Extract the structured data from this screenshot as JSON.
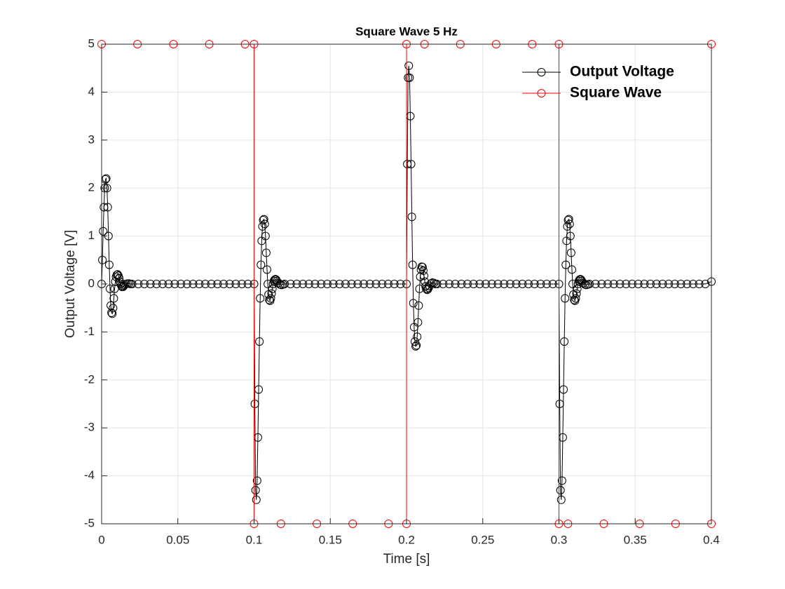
{
  "chart_data": {
    "type": "line",
    "title": "Square Wave 5 Hz",
    "xlabel": "Time [s]",
    "ylabel": "Output Voltage [V]",
    "xlim": [
      0,
      0.4
    ],
    "ylim": [
      -5,
      5
    ],
    "xticks": [
      0,
      0.05,
      0.1,
      0.15,
      0.2,
      0.25,
      0.3,
      0.35,
      0.4
    ],
    "yticks": [
      -5,
      -4,
      -3,
      -2,
      -1,
      0,
      1,
      2,
      3,
      4,
      5
    ],
    "grid": true,
    "legend": "northeast",
    "series": [
      {
        "name": "Output Voltage",
        "color": "#000000",
        "marker": "o",
        "x": [
          0,
          0.0005,
          0.001,
          0.0015,
          0.002,
          0.0025,
          0.003,
          0.0035,
          0.004,
          0.0045,
          0.005,
          0.0055,
          0.006,
          0.0065,
          0.007,
          0.0075,
          0.008,
          0.0085,
          0.009,
          0.0095,
          0.01,
          0.0105,
          0.011,
          0.0115,
          0.012,
          0.0125,
          0.013,
          0.0135,
          0.014,
          0.0145,
          0.015,
          0.016,
          0.017,
          0.018,
          0.019,
          0.02,
          0.024,
          0.028,
          0.032,
          0.036,
          0.04,
          0.044,
          0.048,
          0.052,
          0.056,
          0.06,
          0.064,
          0.068,
          0.072,
          0.076,
          0.08,
          0.084,
          0.088,
          0.092,
          0.096,
          0.1,
          0.1005,
          0.101,
          0.1015,
          0.102,
          0.1025,
          0.103,
          0.1035,
          0.104,
          0.1045,
          0.105,
          0.1055,
          0.106,
          0.1065,
          0.107,
          0.1075,
          0.108,
          0.1085,
          0.109,
          0.1095,
          0.11,
          0.1105,
          0.111,
          0.1115,
          0.112,
          0.1125,
          0.113,
          0.1135,
          0.114,
          0.1145,
          0.115,
          0.116,
          0.117,
          0.118,
          0.119,
          0.12,
          0.124,
          0.128,
          0.132,
          0.136,
          0.14,
          0.144,
          0.148,
          0.152,
          0.156,
          0.16,
          0.164,
          0.168,
          0.172,
          0.176,
          0.18,
          0.184,
          0.188,
          0.192,
          0.196,
          0.2,
          0.2005,
          0.201,
          0.2015,
          0.202,
          0.2025,
          0.203,
          0.2035,
          0.204,
          0.2045,
          0.205,
          0.2055,
          0.206,
          0.2065,
          0.207,
          0.2075,
          0.208,
          0.2085,
          0.209,
          0.2095,
          0.21,
          0.2105,
          0.211,
          0.2115,
          0.212,
          0.2125,
          0.213,
          0.2135,
          0.214,
          0.2145,
          0.215,
          0.216,
          0.217,
          0.218,
          0.219,
          0.22,
          0.224,
          0.228,
          0.232,
          0.236,
          0.24,
          0.244,
          0.248,
          0.252,
          0.256,
          0.26,
          0.264,
          0.268,
          0.272,
          0.276,
          0.28,
          0.284,
          0.288,
          0.292,
          0.296,
          0.3,
          0.3005,
          0.301,
          0.3015,
          0.302,
          0.3025,
          0.303,
          0.3035,
          0.304,
          0.3045,
          0.305,
          0.3055,
          0.306,
          0.3065,
          0.307,
          0.3075,
          0.308,
          0.3085,
          0.309,
          0.3095,
          0.31,
          0.3105,
          0.311,
          0.3115,
          0.312,
          0.3125,
          0.313,
          0.3135,
          0.314,
          0.3145,
          0.315,
          0.316,
          0.317,
          0.318,
          0.319,
          0.32,
          0.324,
          0.328,
          0.332,
          0.336,
          0.34,
          0.344,
          0.348,
          0.352,
          0.356,
          0.36,
          0.364,
          0.368,
          0.372,
          0.376,
          0.38,
          0.384,
          0.388,
          0.392,
          0.396,
          0.4
        ],
        "values": [
          0,
          0.5,
          1.1,
          1.6,
          2.0,
          2.18,
          2.2,
          2.0,
          1.6,
          1.0,
          0.4,
          -0.1,
          -0.45,
          -0.6,
          -0.62,
          -0.5,
          -0.3,
          -0.1,
          0.05,
          0.15,
          0.19,
          0.2,
          0.17,
          0.12,
          0.05,
          0,
          -0.04,
          -0.06,
          -0.06,
          -0.04,
          -0.02,
          0,
          0.01,
          0.01,
          0,
          0,
          0,
          0,
          0,
          0,
          0,
          0,
          0,
          0,
          0,
          0,
          0,
          0,
          0,
          0,
          0,
          0,
          0,
          0,
          0,
          0,
          -2.5,
          -4.3,
          -4.5,
          -4.1,
          -3.2,
          -2.2,
          -1.2,
          -0.3,
          0.4,
          0.9,
          1.2,
          1.33,
          1.35,
          1.25,
          1.0,
          0.65,
          0.3,
          0,
          -0.22,
          -0.33,
          -0.35,
          -0.3,
          -0.2,
          -0.1,
          0,
          0.06,
          0.09,
          0.1,
          0.09,
          0.06,
          0.02,
          -0.01,
          -0.02,
          -0.01,
          0,
          0,
          0,
          0,
          0,
          0,
          0,
          0,
          0,
          0,
          0,
          0,
          0,
          0,
          0,
          0,
          0,
          0,
          0,
          0,
          0,
          2.5,
          4.3,
          4.55,
          4.3,
          3.5,
          2.5,
          1.4,
          0.4,
          -0.4,
          -0.9,
          -1.2,
          -1.3,
          -1.28,
          -1.1,
          -0.8,
          -0.45,
          -0.1,
          0.15,
          0.3,
          0.36,
          0.35,
          0.28,
          0.17,
          0.05,
          -0.05,
          -0.1,
          -0.12,
          -0.11,
          -0.08,
          -0.04,
          0.01,
          0.03,
          0.02,
          0,
          0,
          0,
          0,
          0,
          0,
          0,
          0,
          0,
          0,
          0,
          0,
          0,
          0,
          0,
          0,
          0,
          0,
          0,
          0,
          0,
          0,
          -2.5,
          -4.3,
          -4.5,
          -4.1,
          -3.2,
          -2.2,
          -1.2,
          -0.3,
          0.4,
          0.9,
          1.2,
          1.33,
          1.35,
          1.25,
          1.0,
          0.65,
          0.3,
          0,
          -0.22,
          -0.33,
          -0.35,
          -0.3,
          -0.2,
          -0.1,
          0,
          0.06,
          0.09,
          0.1,
          0.09,
          0.06,
          0.02,
          -0.01,
          -0.02,
          -0.01,
          0,
          0,
          0,
          0,
          0,
          0,
          0,
          0,
          0,
          0,
          0,
          0,
          0,
          0,
          0,
          0,
          0,
          0,
          0,
          0,
          0.05
        ]
      },
      {
        "name": "Square Wave",
        "color": "#ff0000",
        "marker": "o",
        "x": [
          0,
          0.0235,
          0.0471,
          0.0706,
          0.0941,
          0.1,
          0.1,
          0.1176,
          0.1412,
          0.1647,
          0.1882,
          0.2,
          0.2,
          0.2118,
          0.2353,
          0.2588,
          0.2824,
          0.3,
          0.3,
          0.3059,
          0.3294,
          0.3529,
          0.3765,
          0.4,
          0.4
        ],
        "values": [
          5,
          5,
          5,
          5,
          5,
          5,
          -5,
          -5,
          -5,
          -5,
          -5,
          -5,
          5,
          5,
          5,
          5,
          5,
          5,
          -5,
          -5,
          -5,
          -5,
          -5,
          -5,
          5
        ]
      }
    ]
  }
}
